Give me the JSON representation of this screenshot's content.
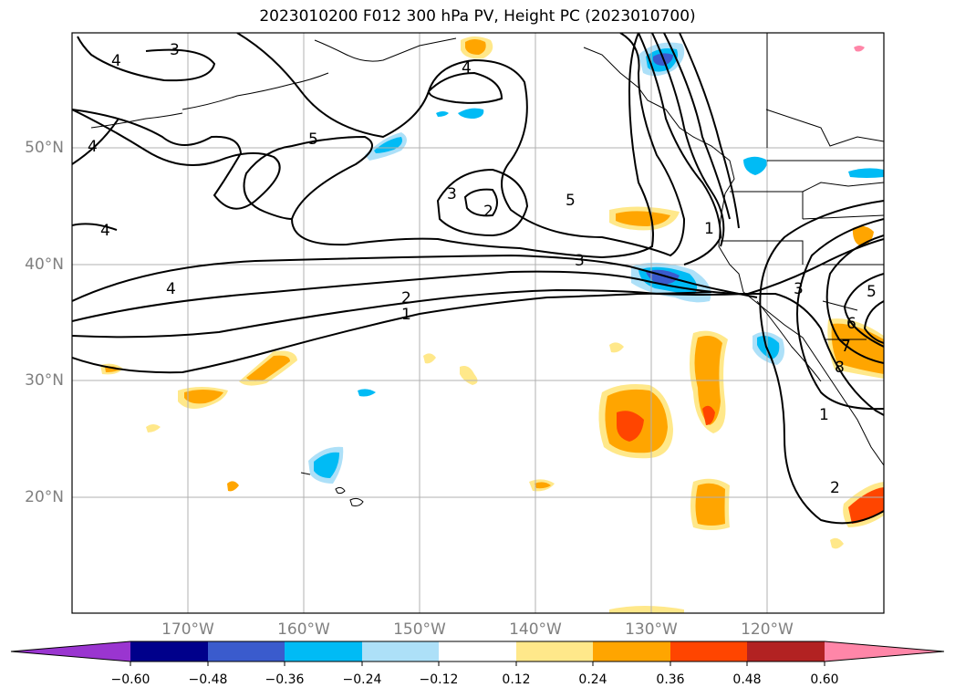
{
  "title": "2023010200 F012 300 hPa PV, Height PC (2023010700)",
  "lat_labels": [
    "50°N",
    "40°N",
    "30°N",
    "20°N"
  ],
  "lon_labels": [
    "170°W",
    "160°W",
    "150°W",
    "140°W",
    "130°W",
    "120°W"
  ],
  "colorbar": {
    "ticks": [
      "−0.60",
      "−0.48",
      "−0.36",
      "−0.24",
      "−0.12",
      "0.12",
      "0.24",
      "0.36",
      "0.48",
      "0.60"
    ],
    "colors": [
      "#9a35d0",
      "#00008b",
      "#3a5bcd",
      "#00bbf5",
      "#ade0f8",
      "#ffffff",
      "#ffe88a",
      "#ffa500",
      "#ff4500",
      "#b22222",
      "#ff86a8"
    ]
  },
  "contour_labels": [
    "3",
    "4",
    "4",
    "5",
    "4",
    "3",
    "2",
    "5",
    "3",
    "2",
    "1",
    "4",
    "1",
    "3",
    "5",
    "6",
    "7",
    "8",
    "1",
    "2",
    "4"
  ],
  "colors": {
    "gridline": "#b0b0b0",
    "coastline": "#000000",
    "contour": "#000000"
  }
}
